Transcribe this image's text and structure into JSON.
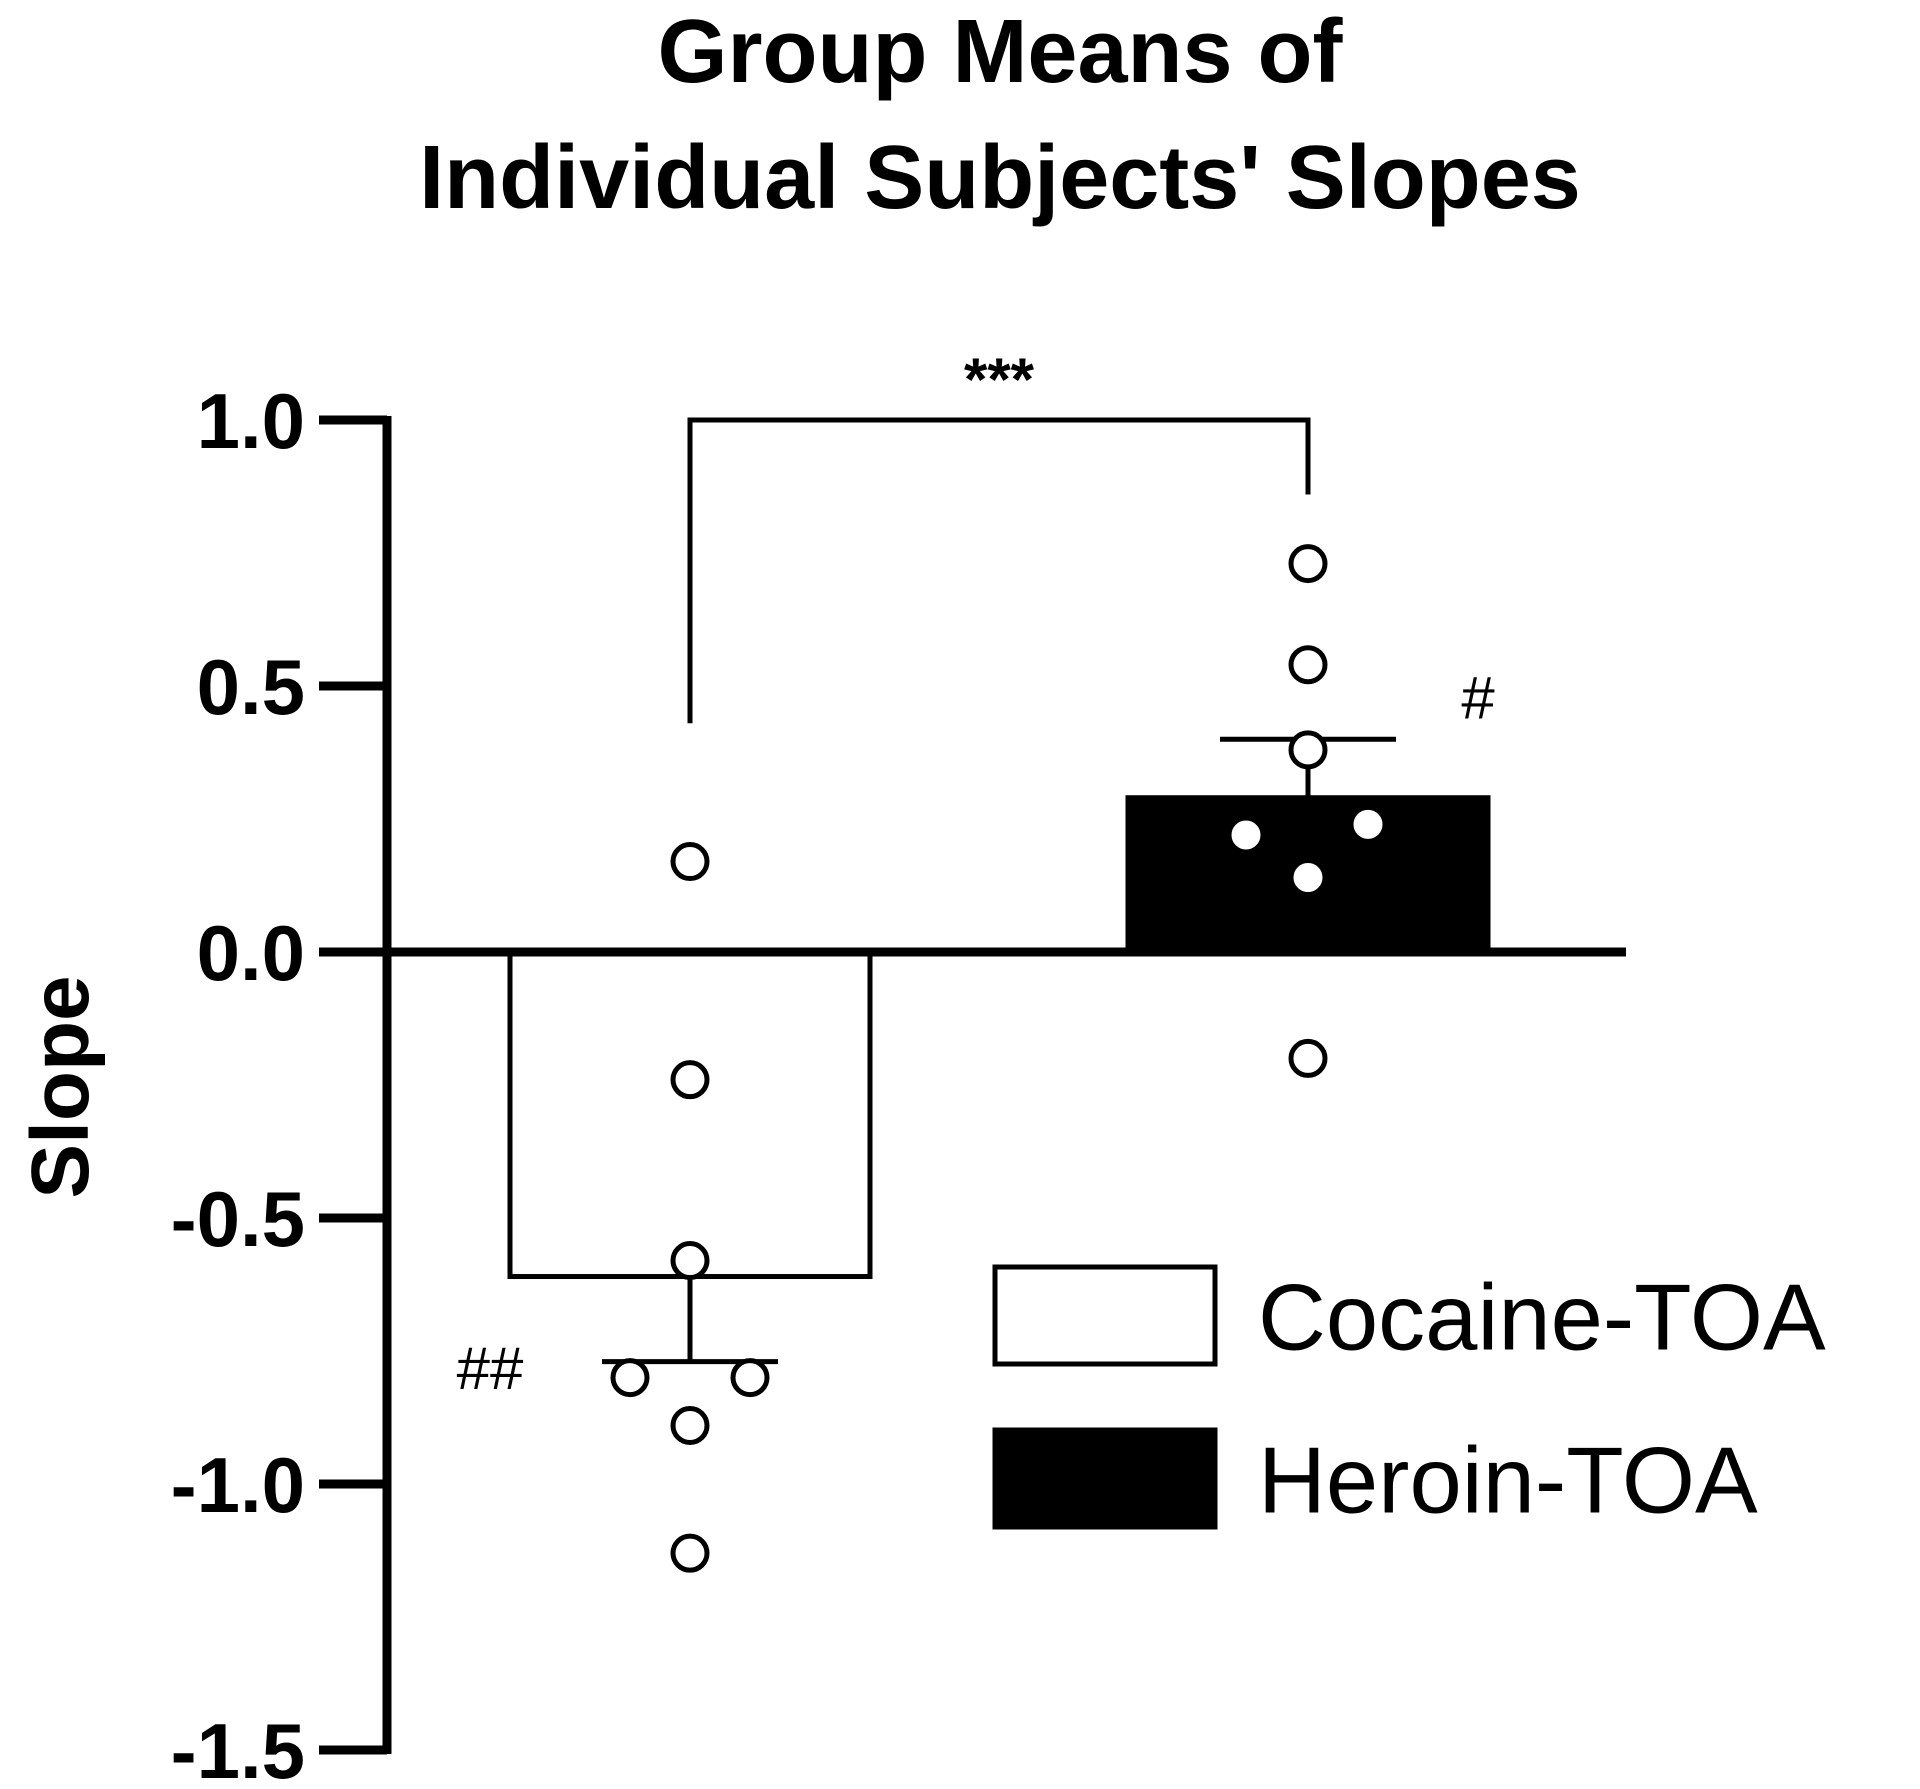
{
  "chart_data": {
    "type": "bar",
    "title_lines": [
      "Group Means of",
      "Individual Subjects' Slopes"
    ],
    "xlabel": "",
    "ylabel": "Slope",
    "ylim": [
      -1.5,
      1.0
    ],
    "yticks": [
      1.0,
      0.5,
      0.0,
      -0.5,
      -1.0,
      -1.5
    ],
    "ytick_labels": [
      "1.0",
      "0.5",
      "0.0",
      "-0.5",
      "-1.0",
      "-1.5"
    ],
    "grid": false,
    "legend_position": "lower-right",
    "categories": [
      "Cocaine-TOA",
      "Heroin-TOA"
    ],
    "series": [
      {
        "name": "Cocaine-TOA",
        "mean": -0.61,
        "sem": 0.16,
        "color": "#ffffff",
        "points": [
          0.17,
          -0.24,
          -0.58,
          -0.8,
          -0.8,
          -0.89,
          -1.13
        ],
        "annotation": "##"
      },
      {
        "name": "Heroin-TOA",
        "mean": 0.29,
        "sem": 0.11,
        "color": "#000000",
        "points": [
          0.73,
          0.54,
          0.38,
          0.22,
          0.24,
          0.14,
          -0.2
        ],
        "annotation": "#"
      }
    ],
    "comparison": {
      "between": [
        "Cocaine-TOA",
        "Heroin-TOA"
      ],
      "label": "***"
    }
  }
}
